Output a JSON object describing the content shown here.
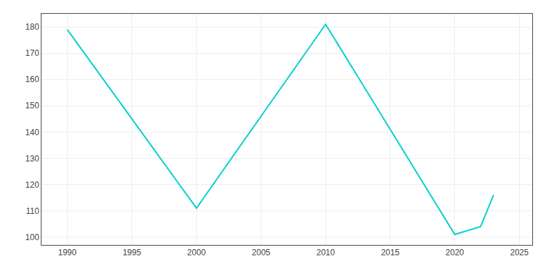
{
  "chart_data": {
    "type": "line",
    "x": [
      1990,
      2000,
      2010,
      2020,
      2022,
      2023
    ],
    "values": [
      179,
      111,
      181,
      101,
      104,
      116
    ],
    "color": "#00CFCF",
    "xlim": [
      1988,
      2026
    ],
    "ylim": [
      97,
      185
    ],
    "xticks": [
      1990,
      1995,
      2000,
      2005,
      2010,
      2015,
      2020,
      2025
    ],
    "yticks": [
      100,
      110,
      120,
      130,
      140,
      150,
      160,
      170,
      180
    ],
    "grid": true
  }
}
